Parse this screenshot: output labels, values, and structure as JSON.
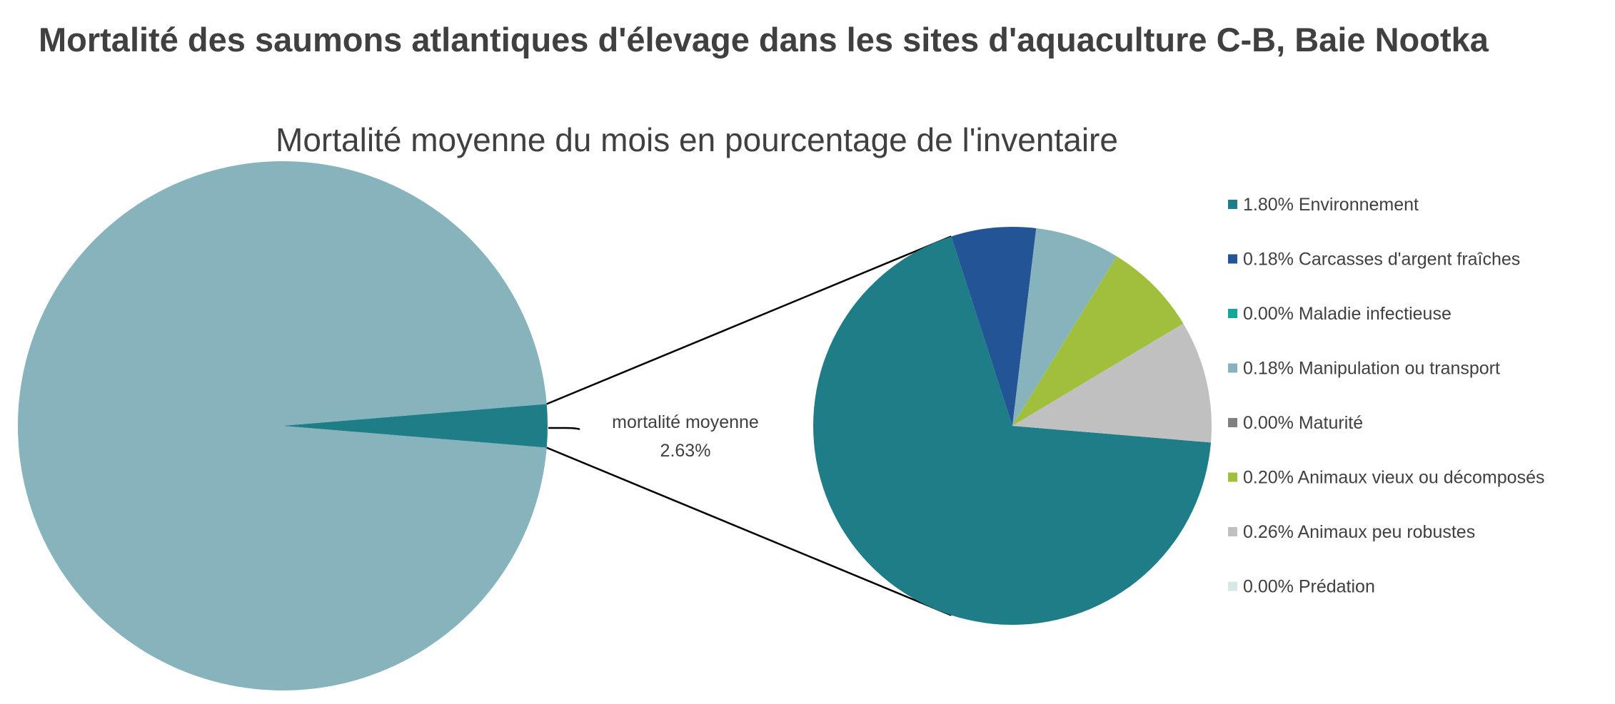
{
  "title": "Mortalité des saumons atlantiques d'élevage dans les sites d'aquaculture C-B, Baie Nootka",
  "chart_data": {
    "type": "pie",
    "subtitle": "Mortalité moyenne du mois en pourcentage de l'inventaire",
    "primary_pie": {
      "slices": [
        {
          "value": 97.37,
          "color": "#87b4bc"
        },
        {
          "name": "mortalité moyenne",
          "value": 2.63,
          "label": "2.63%",
          "color": "#1e7d87"
        }
      ]
    },
    "secondary_pie": {
      "unit": "%",
      "slices": [
        {
          "name": "Environnement",
          "value": 1.8,
          "label": "1.80% Environnement",
          "color": "#1e7d87"
        },
        {
          "name": "Carcasses d'argent fraîches",
          "value": 0.18,
          "label": "0.18% Carcasses d'argent fraîches",
          "color": "#235495"
        },
        {
          "name": "Maladie infectieuse",
          "value": 0.0,
          "label": "0.00% Maladie infectieuse",
          "color": "#14a89a"
        },
        {
          "name": "Manipulation ou transport",
          "value": 0.18,
          "label": "0.18% Manipulation ou transport",
          "color": "#87b4bc"
        },
        {
          "name": "Maturité",
          "value": 0.0,
          "label": "0.00% Maturité",
          "color": "#808080"
        },
        {
          "name": "Animaux vieux ou décomposés",
          "value": 0.2,
          "label": "0.20% Animaux vieux ou décomposés",
          "color": "#a0bf3c"
        },
        {
          "name": "Animaux peu robustes",
          "value": 0.26,
          "label": "0.26% Animaux peu robustes",
          "color": "#c0c0c0"
        },
        {
          "name": "Prédation",
          "value": 0.0,
          "label": "0.00% Prédation",
          "color": "#d6e8e6"
        }
      ]
    },
    "legend_position": "right",
    "text_color": "#404040"
  }
}
